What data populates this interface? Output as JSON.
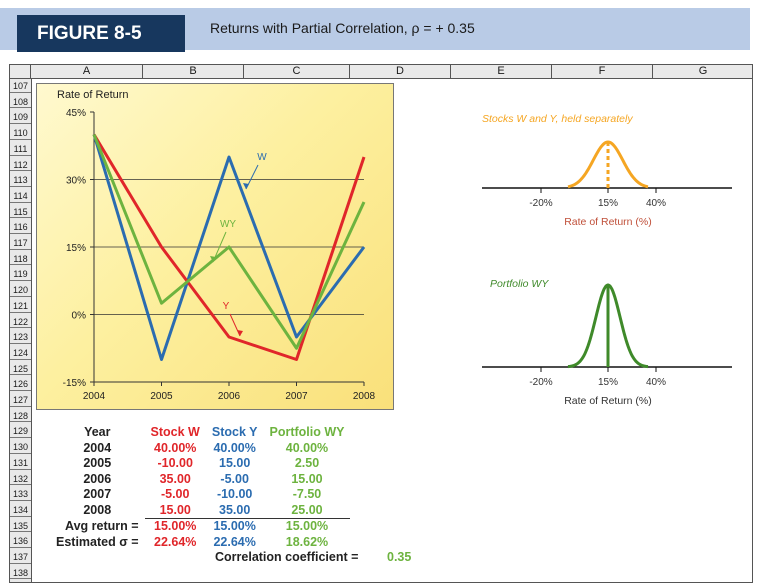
{
  "header": {
    "figure_label": "FIGURE 8-5",
    "title": "Returns with Partial Correlation, ρ = + 0.35"
  },
  "sheet": {
    "columns": [
      "A",
      "B",
      "C",
      "D",
      "E",
      "F",
      "G"
    ],
    "rows": [
      "107",
      "108",
      "109",
      "110",
      "111",
      "112",
      "113",
      "114",
      "115",
      "116",
      "117",
      "118",
      "119",
      "120",
      "121",
      "122",
      "123",
      "124",
      "125",
      "126",
      "127",
      "128",
      "129",
      "130",
      "131",
      "132",
      "133",
      "134",
      "135",
      "136",
      "137",
      "138"
    ]
  },
  "colors": {
    "W": "#2b6cb0",
    "Y": "#e0262a",
    "WY": "#6db33f",
    "orange": "#f5a623",
    "darkgreen": "#3f8a2a"
  },
  "chart_data": [
    {
      "type": "line",
      "title": "",
      "ylabel": "Rate of Return",
      "x": [
        "2004",
        "2005",
        "2006",
        "2007",
        "2008"
      ],
      "yticks": [
        "45%",
        "30%",
        "15%",
        "0%",
        "-15%"
      ],
      "ylim": [
        -15,
        45
      ],
      "series": [
        {
          "name": "W",
          "values": [
            40,
            -10,
            35,
            -5,
            15
          ]
        },
        {
          "name": "Y",
          "values": [
            40,
            15,
            -5,
            -10,
            35
          ]
        },
        {
          "name": "WY",
          "values": [
            40,
            2.5,
            15,
            -7.5,
            25
          ]
        }
      ]
    },
    {
      "type": "area",
      "title": "Stocks W and Y, held separately",
      "xlabel": "Rate of Return (%)",
      "xticks": [
        "-20%",
        "15%",
        "40%"
      ],
      "mean": 15,
      "sd": 22.64
    },
    {
      "type": "area",
      "title": "Portfolio WY",
      "xlabel": "Rate of Return (%)",
      "xticks": [
        "-20%",
        "15%",
        "40%"
      ],
      "mean": 15,
      "sd": 18.62
    }
  ],
  "table": {
    "headers": [
      "Year",
      "Stock W",
      "Stock Y",
      "Portfolio WY"
    ],
    "rows": [
      [
        "2004",
        "40.00%",
        "40.00%",
        "40.00%"
      ],
      [
        "2005",
        "-10.00",
        "15.00",
        "2.50"
      ],
      [
        "2006",
        "35.00",
        "-5.00",
        "15.00"
      ],
      [
        "2007",
        "-5.00",
        "-10.00",
        "-7.50"
      ],
      [
        "2008",
        "15.00",
        "35.00",
        "25.00"
      ]
    ],
    "avg": [
      "Avg return =",
      "15.00%",
      "15.00%",
      "15.00%"
    ],
    "sigma": [
      "Estimated σ =",
      "22.64%",
      "22.64%",
      "18.62%"
    ],
    "corr_label": "Correlation coefficient =",
    "corr_value": "0.35"
  }
}
